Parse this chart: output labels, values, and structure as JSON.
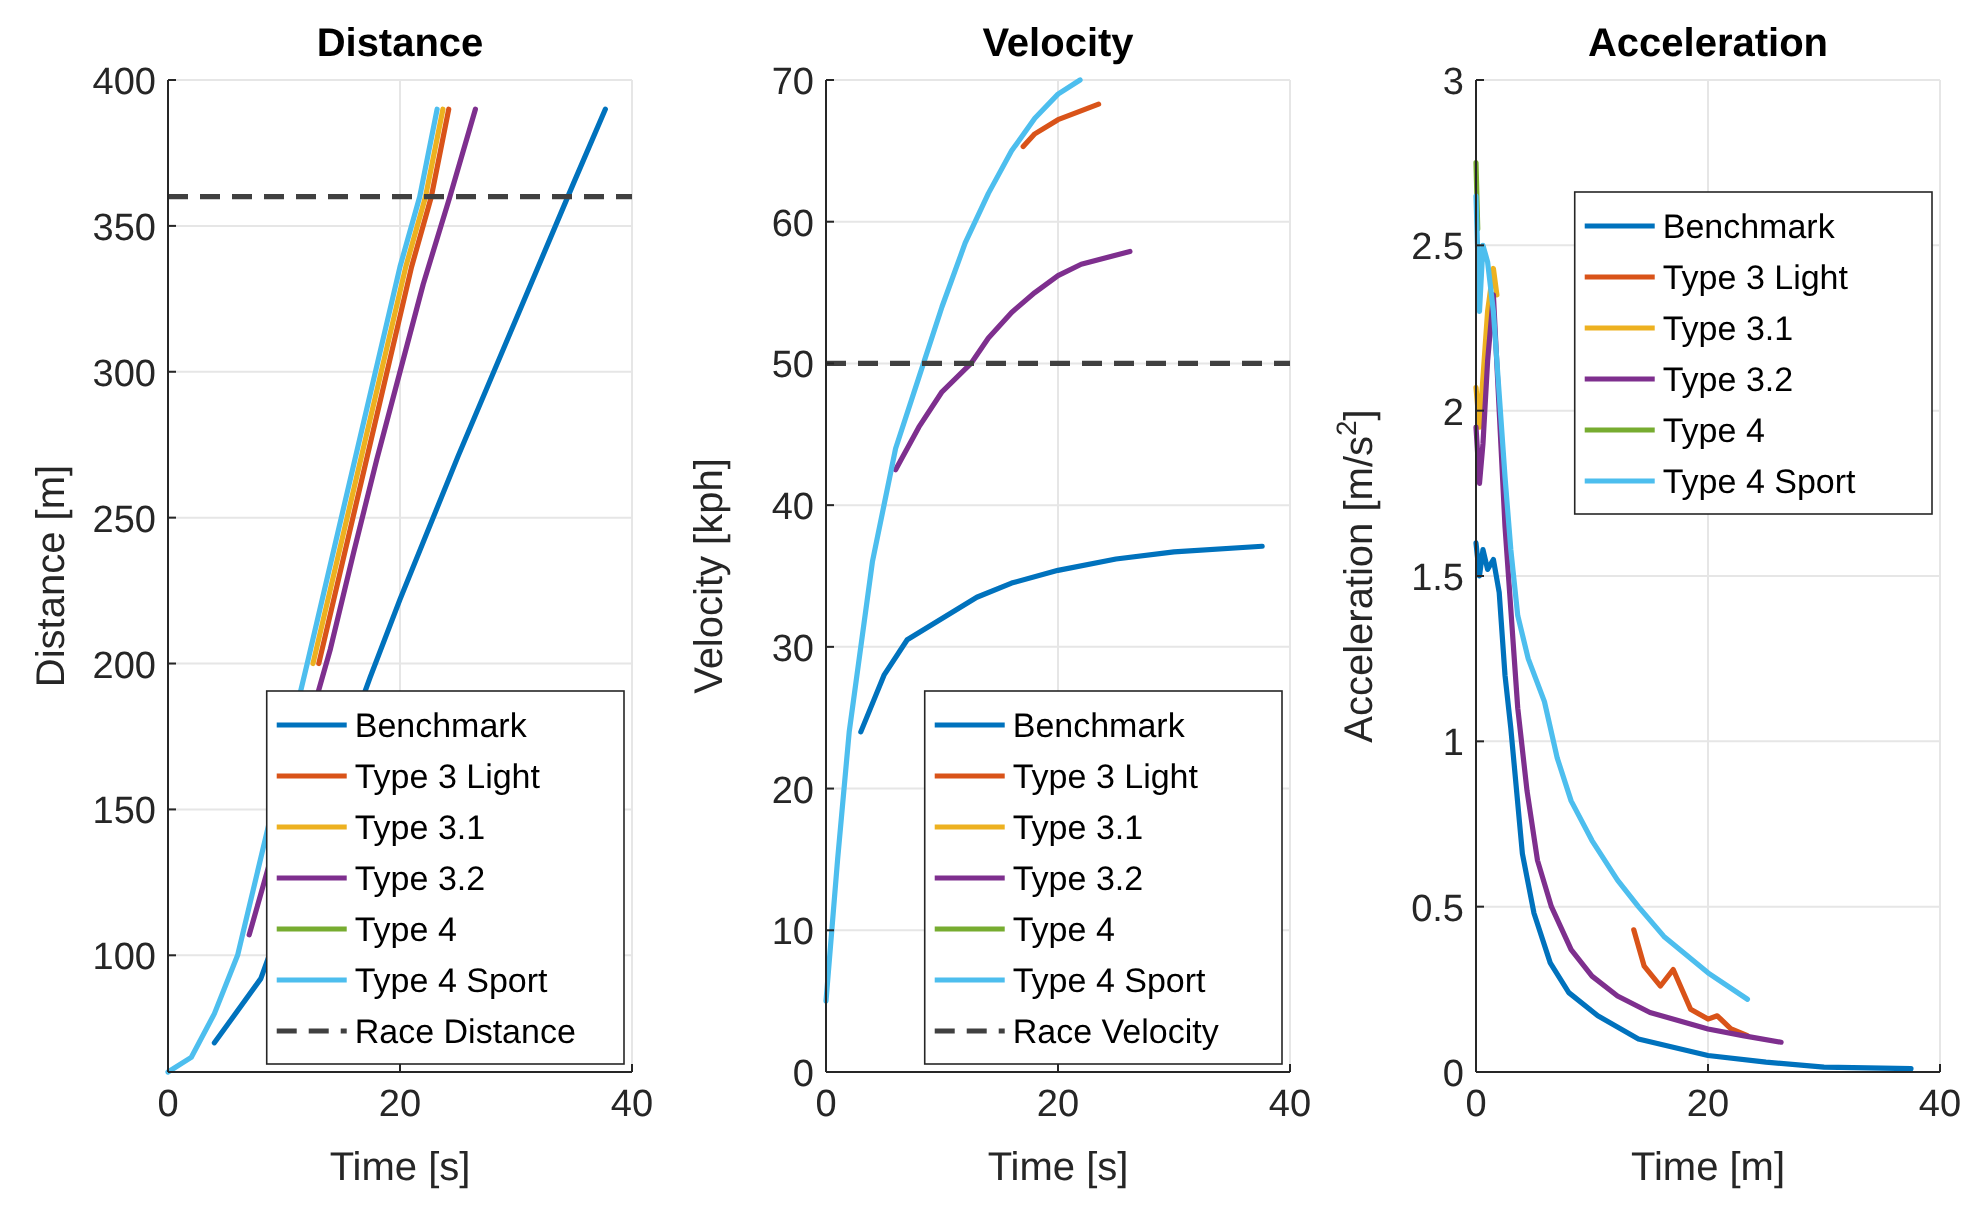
{
  "chart_data": [
    {
      "type": "line",
      "title": "Distance",
      "xlabel": "Time [s]",
      "ylabel": "Distance [m]",
      "xlim": [
        0,
        40
      ],
      "xticks": [
        0,
        20,
        40
      ],
      "ylim": [
        60,
        400
      ],
      "yticks": [
        100,
        150,
        200,
        250,
        300,
        350,
        400
      ],
      "grid": true,
      "legend": "bottom right",
      "line_style": "solid",
      "marker": "none",
      "ref_lines": [
        {
          "axis": "y",
          "value": 360,
          "label": "Race Distance",
          "color": "#404040",
          "line_style": "dashed"
        }
      ],
      "series": [
        {
          "name": "Benchmark",
          "color": "#0072bd",
          "x": [
            4,
            8,
            17.4,
            20,
            25,
            30,
            35,
            37.7
          ],
          "values": [
            70,
            92,
            195,
            222,
            271,
            318,
            365,
            390
          ]
        },
        {
          "name": "Type 3 Light",
          "color": "#d95319",
          "x": [
            13,
            17,
            21,
            22.7,
            24.2
          ],
          "values": [
            200,
            268,
            336,
            360,
            390
          ]
        },
        {
          "name": "Type 3.1",
          "color": "#edb120",
          "x": [
            12.5,
            16.5,
            20.5,
            22.2,
            23.7
          ],
          "values": [
            200,
            268,
            336,
            360,
            390
          ]
        },
        {
          "name": "Type 3.2",
          "color": "#7e2f8e",
          "x": [
            7,
            14,
            16,
            18,
            20,
            22,
            24.3,
            26.5
          ],
          "values": [
            107,
            205,
            238,
            270,
            300,
            330,
            360,
            390
          ]
        },
        {
          "name": "Type 4",
          "color": "#77ac30"
        },
        {
          "name": "Type 4 Sport",
          "color": "#4dbeee",
          "x": [
            0,
            2,
            4,
            6,
            12,
            16,
            20,
            21.7,
            23.2
          ],
          "values": [
            60,
            65,
            80,
            100,
            200,
            268,
            336,
            360,
            390
          ]
        }
      ]
    },
    {
      "type": "line",
      "title": "Velocity",
      "xlabel": "Time [s]",
      "ylabel": "Velocity [kph]",
      "xlim": [
        0,
        40
      ],
      "xticks": [
        0,
        20,
        40
      ],
      "ylim": [
        0,
        70
      ],
      "yticks": [
        0,
        10,
        20,
        30,
        40,
        50,
        60,
        70
      ],
      "grid": true,
      "legend": "bottom right",
      "line_style": "solid",
      "marker": "none",
      "ref_lines": [
        {
          "axis": "y",
          "value": 50,
          "label": "Race Velocity",
          "color": "#404040",
          "line_style": "dashed"
        }
      ],
      "series": [
        {
          "name": "Benchmark",
          "color": "#0072bd",
          "x": [
            3,
            5,
            7,
            10,
            13,
            16,
            20,
            25,
            30,
            37.6
          ],
          "values": [
            24,
            28,
            30.5,
            32,
            33.5,
            34.5,
            35.4,
            36.2,
            36.7,
            37.1
          ]
        },
        {
          "name": "Type 3 Light",
          "color": "#d95319",
          "x": [
            17,
            18,
            20,
            23.5
          ],
          "values": [
            65.3,
            66.2,
            67.2,
            68.3
          ]
        },
        {
          "name": "Type 3.1",
          "color": "#edb120"
        },
        {
          "name": "Type 3.2",
          "color": "#7e2f8e",
          "x": [
            6,
            8,
            10,
            12.5,
            14,
            16,
            18,
            20,
            22,
            26.2
          ],
          "values": [
            42.5,
            45.5,
            48,
            50,
            51.8,
            53.6,
            55,
            56.2,
            57,
            57.9
          ]
        },
        {
          "name": "Type 4",
          "color": "#77ac30"
        },
        {
          "name": "Type 4 Sport",
          "color": "#4dbeee",
          "x": [
            0,
            1,
            2,
            4,
            5,
            6,
            8,
            10,
            12,
            14,
            16,
            18,
            20,
            21.9
          ],
          "values": [
            5,
            15,
            24,
            36,
            40,
            44,
            49,
            54,
            58.5,
            62,
            65,
            67.3,
            69,
            70
          ]
        }
      ]
    },
    {
      "type": "line",
      "title": "Acceleration",
      "xlabel": "Time [m]",
      "ylabel": "Acceleration [m/s$^{2}$]",
      "xlim": [
        0,
        40
      ],
      "xticks": [
        0,
        20,
        40
      ],
      "ylim": [
        0,
        3
      ],
      "yticks": [
        0,
        0.5,
        1,
        1.5,
        2,
        2.5,
        3
      ],
      "grid": true,
      "legend": "top right",
      "line_style": "solid",
      "marker": "none",
      "series": [
        {
          "name": "Benchmark",
          "color": "#0072bd",
          "x": [
            0,
            0.3,
            0.6,
            1,
            1.5,
            2,
            2.5,
            3,
            4,
            5,
            6.4,
            8,
            10.5,
            14,
            20,
            25,
            30,
            37.5
          ],
          "values": [
            1.6,
            1.5,
            1.58,
            1.52,
            1.55,
            1.45,
            1.2,
            1.04,
            0.66,
            0.48,
            0.33,
            0.24,
            0.17,
            0.1,
            0.05,
            0.03,
            0.015,
            0.01
          ]
        },
        {
          "name": "Type 3 Light",
          "color": "#d95319",
          "x": [
            13.6,
            14.5,
            15.9,
            17,
            18.5,
            20,
            20.8,
            22,
            23.4
          ],
          "values": [
            0.43,
            0.32,
            0.26,
            0.31,
            0.19,
            0.16,
            0.17,
            0.13,
            0.11
          ]
        },
        {
          "name": "Type 3.1",
          "color": "#edb120",
          "x": [
            0,
            0.3,
            0.6,
            1,
            1.5,
            1.8
          ],
          "values": [
            2.07,
            1.95,
            2.1,
            2.3,
            2.43,
            2.35
          ]
        },
        {
          "name": "Type 3.2",
          "color": "#7e2f8e",
          "x": [
            0,
            0.3,
            0.6,
            1,
            1.5,
            2.5,
            3.6,
            4.4,
            5.3,
            6.5,
            8.2,
            10,
            12.2,
            15,
            20,
            23,
            26.3
          ],
          "values": [
            1.95,
            1.78,
            1.9,
            2.15,
            2.35,
            1.65,
            1.1,
            0.85,
            0.64,
            0.5,
            0.37,
            0.29,
            0.23,
            0.18,
            0.13,
            0.11,
            0.09
          ]
        },
        {
          "name": "Type 4",
          "color": "#77ac30",
          "x": [
            0,
            0.15
          ],
          "values": [
            2.75,
            2.55
          ]
        },
        {
          "name": "Type 4 Sport",
          "color": "#4dbeee",
          "x": [
            0,
            0.3,
            0.6,
            1,
            1.5,
            2,
            2.5,
            3,
            3.6,
            4.5,
            5.9,
            7,
            8.2,
            10,
            12.2,
            14,
            16.2,
            20,
            23.4
          ],
          "values": [
            2.65,
            2.3,
            2.5,
            2.45,
            2.3,
            2.05,
            1.8,
            1.58,
            1.38,
            1.25,
            1.12,
            0.95,
            0.82,
            0.7,
            0.58,
            0.5,
            0.41,
            0.3,
            0.22
          ]
        }
      ]
    }
  ]
}
